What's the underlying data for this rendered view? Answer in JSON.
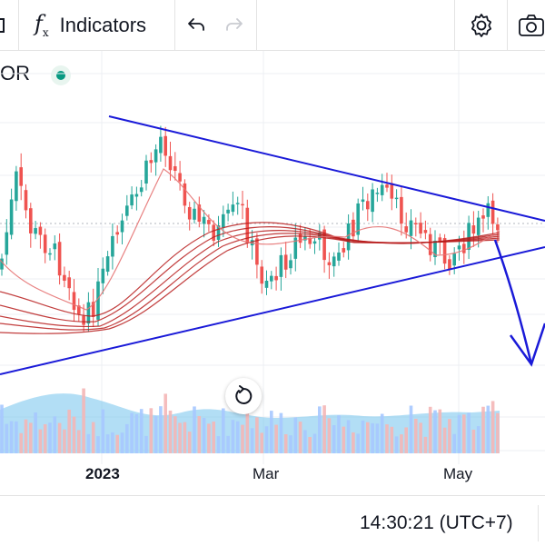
{
  "toolbar": {
    "indicators_label": "Indicators",
    "icons": [
      "compare-icon",
      "fx-icon",
      "undo-icon",
      "redo-icon",
      "settings-icon",
      "camera-icon"
    ]
  },
  "legend": {
    "symbol": "OR",
    "status_color": "#089981"
  },
  "xaxis": {
    "labels": [
      "2023",
      "Mar",
      "May"
    ]
  },
  "time": {
    "clock": "14:30:21 (UTC+7)"
  },
  "colors": {
    "up": "#26a69a",
    "down": "#ef5350",
    "trendline": "#1a1ad8",
    "ma": "#b71c1c"
  }
}
